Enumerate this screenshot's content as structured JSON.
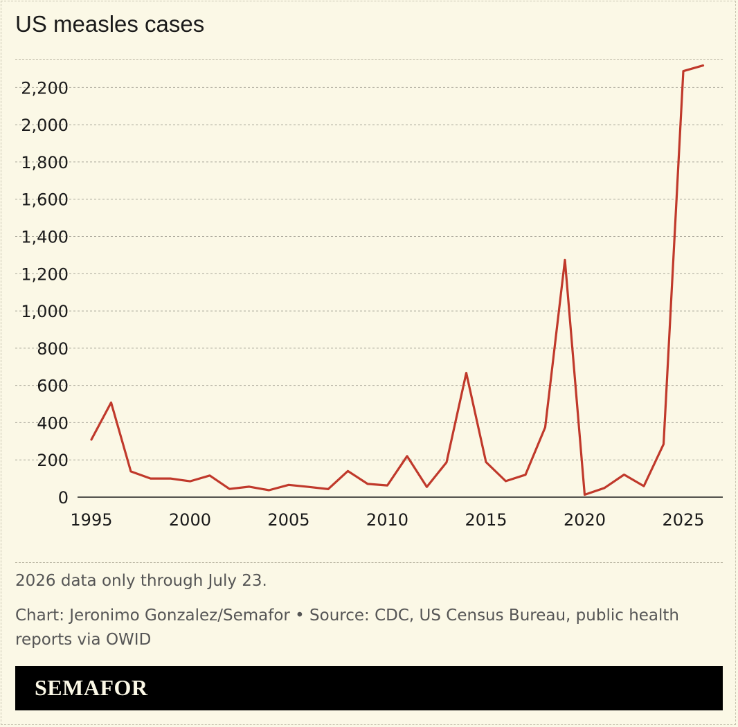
{
  "header": {
    "title": "US measles cases"
  },
  "chart_data": {
    "type": "line",
    "title": "US measles cases",
    "xlabel": "",
    "ylabel": "",
    "x": [
      1995,
      1996,
      1997,
      1998,
      1999,
      2000,
      2001,
      2002,
      2003,
      2004,
      2005,
      2006,
      2007,
      2008,
      2009,
      2010,
      2011,
      2012,
      2013,
      2014,
      2015,
      2016,
      2017,
      2018,
      2019,
      2020,
      2021,
      2022,
      2023,
      2024,
      2025,
      2026
    ],
    "series": [
      {
        "values": [
          309,
          508,
          138,
          100,
          100,
          85,
          116,
          44,
          56,
          37,
          66,
          55,
          43,
          140,
          71,
          63,
          220,
          55,
          187,
          667,
          188,
          86,
          120,
          375,
          1274,
          13,
          49,
          121,
          59,
          285,
          2288,
          2318
        ],
        "color": "#c0392b"
      }
    ],
    "xlim": [
      1994.3,
      2027
    ],
    "ylim": [
      0,
      2350
    ],
    "x_ticks": [
      1995,
      2000,
      2005,
      2010,
      2015,
      2020,
      2025
    ],
    "y_ticks": [
      0,
      200,
      400,
      600,
      800,
      1000,
      1200,
      1400,
      1600,
      1800,
      2000,
      2200
    ],
    "x_tick_labels": [
      "1995",
      "2000",
      "2005",
      "2010",
      "2015",
      "2020",
      "2025"
    ],
    "y_tick_labels": [
      "0",
      "200",
      "400",
      "600",
      "800",
      "1,000",
      "1,200",
      "1,400",
      "1,600",
      "1,800",
      "2,000",
      "2,200"
    ],
    "grid": true
  },
  "footnote": {
    "note": "2026 data only through July 23.",
    "credit": "Chart: Jeronimo Gonzalez/Semafor • Source: CDC, US Census Bureau, public health reports via OWID"
  },
  "footer": {
    "brand": "SEMAFOR"
  }
}
